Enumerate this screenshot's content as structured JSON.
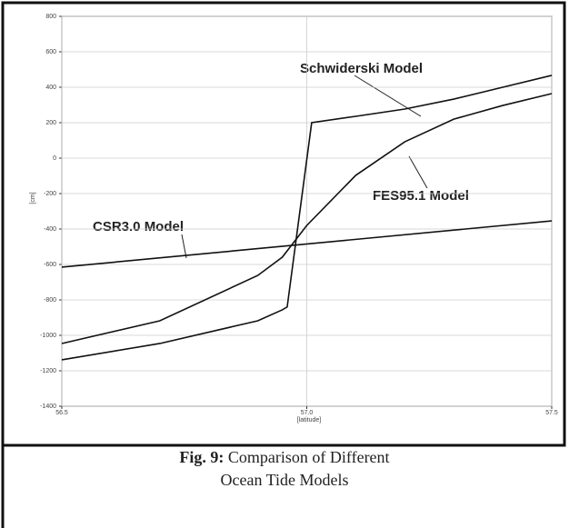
{
  "chart_data": {
    "type": "line",
    "xlabel": "[latitude]",
    "ylabel": "[cm]",
    "xlim": [
      56.5,
      57.5
    ],
    "xticks": [
      {
        "value": 56.5,
        "label": "56.5"
      },
      {
        "value": 57,
        "label": "57.0"
      },
      {
        "value": 57.5,
        "label": "57.5"
      }
    ],
    "ylim": [
      -1400,
      800
    ],
    "yticks": [
      -1400,
      -1200,
      -1000,
      -800,
      -600,
      -400,
      -200,
      0,
      200,
      400,
      600,
      800
    ],
    "grid": true,
    "series": [
      {
        "name": "Schwiderski Model",
        "color": "#111111",
        "x": [
          56.5,
          56.7,
          56.9,
          56.95,
          56.96,
          57.01,
          57.1,
          57.2,
          57.3,
          57.4,
          57.5
        ],
        "values": [
          -1138,
          -1046,
          -918,
          -856,
          -840,
          200,
          236,
          277,
          333,
          400,
          467
        ]
      },
      {
        "name": "FES95.1 Model",
        "color": "#111111",
        "x": [
          56.5,
          56.7,
          56.9,
          56.95,
          57.0,
          57.1,
          57.2,
          57.3,
          57.4,
          57.5
        ],
        "values": [
          -1046,
          -918,
          -662,
          -559,
          -380,
          -97,
          92,
          220,
          297,
          364
        ]
      },
      {
        "name": "CSR3.0 Model",
        "color": "#111111",
        "x": [
          56.5,
          57.5
        ],
        "values": [
          -615,
          -354
        ]
      }
    ]
  },
  "figure_label": "Fig. 9:",
  "caption_lines": [
    "Comparison of Different",
    "Ocean Tide Models"
  ]
}
